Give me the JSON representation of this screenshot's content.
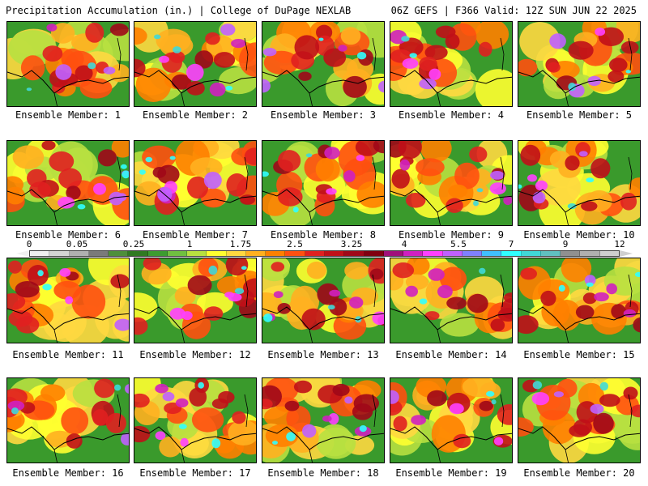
{
  "header": {
    "title_left": "Precipitation Accumulation (in.) | College of DuPage NEXLAB",
    "title_right": "06Z GEFS | F366 Valid: 12Z SUN JUN 22 2025"
  },
  "colorbar": {
    "tick_labels": [
      "0",
      "0.05",
      "0.25",
      "1",
      "1.75",
      "2.5",
      "3.25",
      "4",
      "5.5",
      "7",
      "9",
      "12"
    ],
    "colors": [
      "#f0f0f0",
      "#d4d4d4",
      "#b0b0b0",
      "#7a7a7a",
      "#4d8f3a",
      "#2f7a22",
      "#3c9c30",
      "#70c040",
      "#b8e040",
      "#ffff30",
      "#ffd840",
      "#ffb020",
      "#ff8000",
      "#ff5010",
      "#e02020",
      "#c01018",
      "#a00818",
      "#800010",
      "#a0107a",
      "#d020c0",
      "#ff40ff",
      "#c060ff",
      "#8080ff",
      "#40c0ff",
      "#30ffff",
      "#40d8d8",
      "#60c0c0",
      "#909090",
      "#b0b0b0",
      "#cfcfcf"
    ]
  },
  "panels": [
    {
      "label": "Ensemble Member: 1",
      "intensity": 0.45
    },
    {
      "label": "Ensemble Member: 2",
      "intensity": 0.8
    },
    {
      "label": "Ensemble Member: 3",
      "intensity": 0.6
    },
    {
      "label": "Ensemble Member: 4",
      "intensity": 0.6
    },
    {
      "label": "Ensemble Member: 5",
      "intensity": 0.6
    },
    {
      "label": "Ensemble Member: 6",
      "intensity": 0.75
    },
    {
      "label": "Ensemble Member: 7",
      "intensity": 0.65
    },
    {
      "label": "Ensemble Member: 8",
      "intensity": 0.7
    },
    {
      "label": "Ensemble Member: 9",
      "intensity": 0.6
    },
    {
      "label": "Ensemble Member: 10",
      "intensity": 0.65
    },
    {
      "label": "Ensemble Member: 11",
      "intensity": 0.55
    },
    {
      "label": "Ensemble Member: 12",
      "intensity": 0.65
    },
    {
      "label": "Ensemble Member: 13",
      "intensity": 0.75
    },
    {
      "label": "Ensemble Member: 14",
      "intensity": 0.55
    },
    {
      "label": "Ensemble Member: 15",
      "intensity": 0.65
    },
    {
      "label": "Ensemble Member: 16",
      "intensity": 0.45
    },
    {
      "label": "Ensemble Member: 17",
      "intensity": 0.75
    },
    {
      "label": "Ensemble Member: 18",
      "intensity": 0.8
    },
    {
      "label": "Ensemble Member: 19",
      "intensity": 0.6
    },
    {
      "label": "Ensemble Member: 20",
      "intensity": 0.55
    }
  ]
}
